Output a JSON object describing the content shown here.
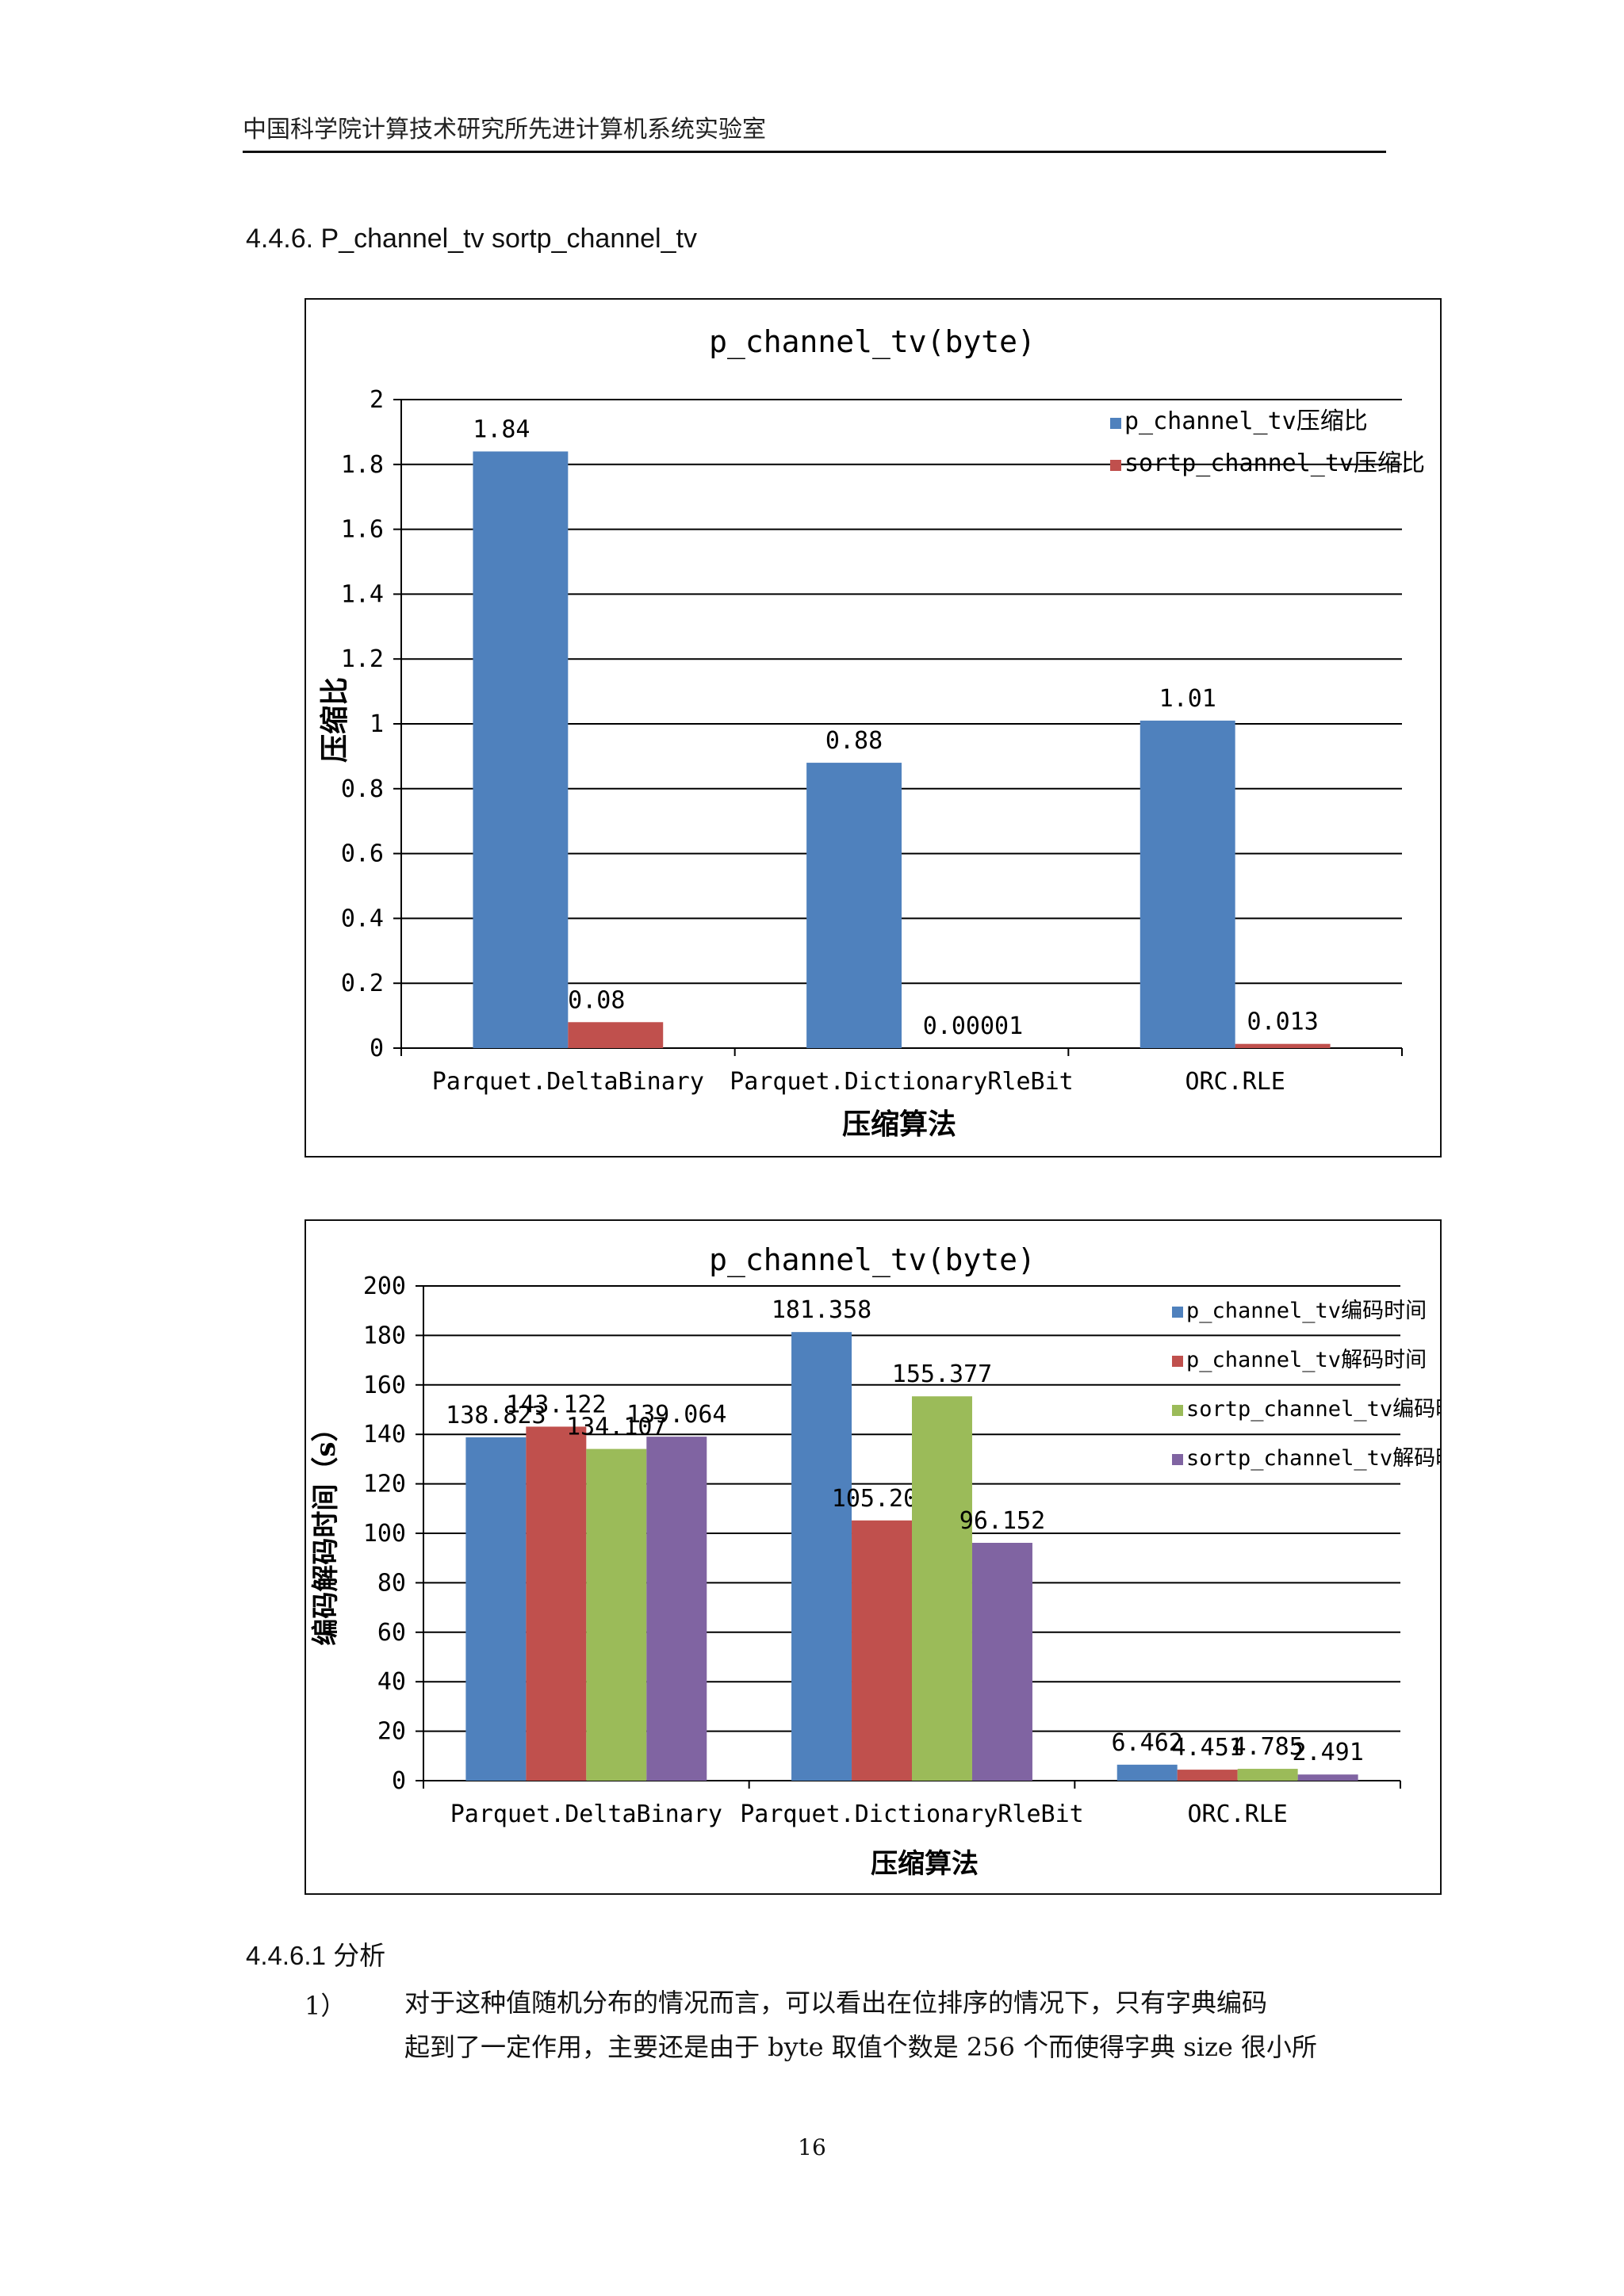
{
  "header": {
    "title": "中国科学院计算技术研究所先进计算机系统实验室"
  },
  "section": {
    "title": "4.4.6.  P_channel_tv sortp_channel_tv"
  },
  "chart_data": [
    {
      "type": "bar",
      "title": "p_channel_tv(byte)",
      "xlabel": "压缩算法",
      "ylabel": "压缩比",
      "ylim": [
        0,
        2
      ],
      "yticks": [
        "0",
        "0.2",
        "0.4",
        "0.6",
        "0.8",
        "1",
        "1.2",
        "1.4",
        "1.6",
        "1.8",
        "2"
      ],
      "categories": [
        "Parquet.DeltaBinary",
        "Parquet.DictionaryRleBit",
        "ORC.RLE"
      ],
      "legend_position": "top-right",
      "series": [
        {
          "name": "p_channel_tv压缩比",
          "color": "#4f81bd",
          "values": [
            1.84,
            0.88,
            1.01
          ],
          "labels": [
            "1.84",
            "0.88",
            "1.01"
          ]
        },
        {
          "name": "sortp_channel_tv压缩比",
          "color": "#c0504d",
          "values": [
            0.08,
            1e-05,
            0.013
          ],
          "labels": [
            "0.08",
            "0.00001",
            "0.013"
          ]
        }
      ]
    },
    {
      "type": "bar",
      "title": "p_channel_tv(byte)",
      "xlabel": "压缩算法",
      "ylabel": "编码解码时间（s）",
      "ylim": [
        0,
        200
      ],
      "yticks": [
        "0",
        "20",
        "40",
        "60",
        "80",
        "100",
        "120",
        "140",
        "160",
        "180",
        "200"
      ],
      "categories": [
        "Parquet.DeltaBinary",
        "Parquet.DictionaryRleBit",
        "ORC.RLE"
      ],
      "legend_position": "top-right",
      "series": [
        {
          "name": "p_channel_tv编码时间",
          "color": "#4f81bd",
          "values": [
            138.823,
            181.358,
            6.462
          ],
          "labels": [
            "138.823",
            "181.358",
            "6.462"
          ]
        },
        {
          "name": "p_channel_tv解码时间",
          "color": "#c0504d",
          "values": [
            143.122,
            105.208,
            4.451
          ],
          "labels": [
            "143.122",
            "105.208",
            "4.451"
          ]
        },
        {
          "name": "sortp_channel_tv编码时间",
          "color": "#9bbb59",
          "values": [
            134.107,
            155.377,
            4.785
          ],
          "labels": [
            "134.107",
            "155.377",
            "4.785"
          ]
        },
        {
          "name": "sortp_channel_tv解码时间",
          "color": "#8064a2",
          "values": [
            139.064,
            96.152,
            2.491
          ],
          "labels": [
            "139.064",
            "96.152",
            "2.491"
          ]
        }
      ]
    }
  ],
  "analysis": {
    "title": "4.4.6.1 分析",
    "item_number": "1）",
    "lines": [
      "对于这种值随机分布的情况而言，可以看出在位排序的情况下，只有字典编码",
      "起到了一定作用，主要还是由于 byte 取值个数是 256 个而使得字典 size 很小所"
    ]
  },
  "footer": {
    "page_number": "16"
  }
}
